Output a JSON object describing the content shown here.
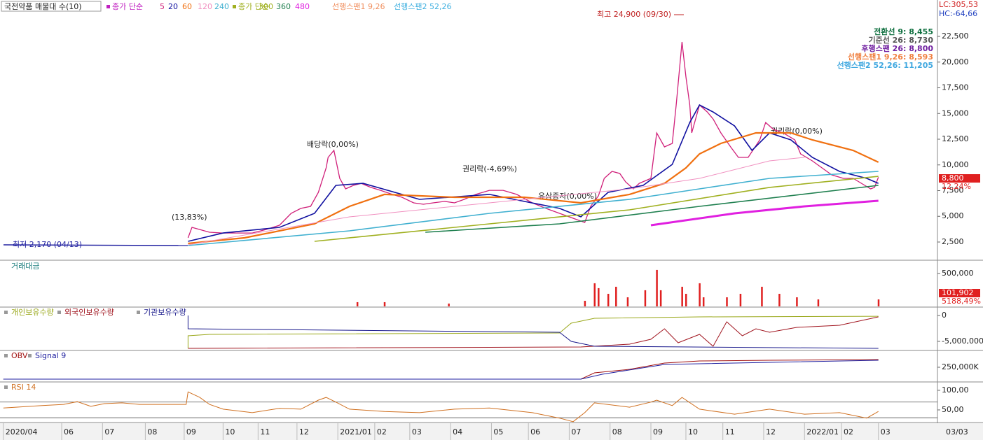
{
  "chart_data": [
    {
      "type": "line",
      "title": "국전약품 매물대 수(10)",
      "legend_groups": [
        "종가 단순",
        "종가 단순"
      ],
      "ichimoku_legend": [
        {
          "name": "선행스팬1 9,26",
          "color": "#f09060"
        },
        {
          "name": "선행스팬2 52,26",
          "color": "#40b0e0"
        }
      ],
      "ichimoku_values": [
        {
          "text": "전환선 9: 8,455",
          "color": "#107040"
        },
        {
          "text": "기준선 26: 8,730",
          "color": "#555555"
        },
        {
          "text": "후행스팬 26: 8,800",
          "color": "#7020a0"
        },
        {
          "text": "선행스팬1 9,26: 8,593",
          "color": "#f08040"
        },
        {
          "text": "선행스팬2 52,26: 11,205",
          "color": "#40a8e0"
        }
      ],
      "lc": "LC:305,53",
      "hc": "HC:-64,66",
      "price_label": "8,800",
      "change_label": "12,24%",
      "annotations": [
        "최고 24,900 (09/30)",
        "최저 2,170 (04/13)",
        "(13,83%)",
        "배당락(0,00%)",
        "권리락(-4,69%)",
        "유상증자(0,00%)",
        "권리락(0,00%)"
      ],
      "cursor_date": "03/03",
      "xlim": [
        0,
        481
      ],
      "xticks": [
        {
          "value": 1,
          "label": "2020/04"
        },
        {
          "value": 31,
          "label": "06"
        },
        {
          "value": 52,
          "label": "07"
        },
        {
          "value": 74,
          "label": "08"
        },
        {
          "value": 94,
          "label": "09"
        },
        {
          "value": 114,
          "label": "10"
        },
        {
          "value": 132,
          "label": "11"
        },
        {
          "value": 152,
          "label": "12"
        },
        {
          "value": 173,
          "label": "2021/01"
        },
        {
          "value": 192,
          "label": "02"
        },
        {
          "value": 210,
          "label": "03"
        },
        {
          "value": 231,
          "label": "04"
        },
        {
          "value": 252,
          "label": "05"
        },
        {
          "value": 271,
          "label": "06"
        },
        {
          "value": 292,
          "label": "07"
        },
        {
          "value": 313,
          "label": "08"
        },
        {
          "value": 334,
          "label": "09"
        },
        {
          "value": 352,
          "label": "10"
        },
        {
          "value": 371,
          "label": "11"
        },
        {
          "value": 392,
          "label": "12"
        },
        {
          "value": 413,
          "label": "2022/01"
        },
        {
          "value": 432,
          "label": "02"
        },
        {
          "value": 451,
          "label": "03"
        }
      ],
      "ylim": [
        730,
        26040
      ],
      "yticks": [
        {
          "value": 2500,
          "label": "2,500"
        },
        {
          "value": 5000,
          "label": "5,000"
        },
        {
          "value": 7500,
          "label": "7,500"
        },
        {
          "value": 10000,
          "label": "10,000"
        },
        {
          "value": 12500,
          "label": "12,500"
        },
        {
          "value": 15000,
          "label": "15,000"
        },
        {
          "value": 17500,
          "label": "17,500"
        },
        {
          "value": 20000,
          "label": "20,000"
        },
        {
          "value": 22500,
          "label": "22,500"
        }
      ],
      "series": [
        {
          "name": "5",
          "color": "#d0207a",
          "width": 1.3,
          "x": [
            96,
            98,
            102,
            107,
            114,
            122,
            129,
            136,
            143,
            149,
            154,
            159,
            163,
            167,
            168,
            171,
            174,
            177,
            181,
            185,
            190,
            195,
            201,
            206,
            212,
            217,
            222,
            228,
            233,
            238,
            244,
            251,
            258,
            265,
            273,
            280,
            287,
            294,
            300,
            303,
            307,
            310,
            314,
            318,
            321,
            325,
            328,
            334,
            337,
            341,
            345,
            347,
            350,
            352,
            354,
            355,
            359,
            363,
            366,
            370,
            375,
            379,
            384,
            390,
            393,
            397,
            402,
            408,
            411,
            417,
            422,
            427,
            433,
            438,
            444,
            447,
            449,
            451
          ],
          "values": [
            2910,
            3930,
            3720,
            3450,
            3380,
            3380,
            3380,
            3720,
            4130,
            5290,
            5770,
            5970,
            7330,
            9710,
            10730,
            11410,
            8690,
            7670,
            8010,
            8210,
            7810,
            7530,
            7130,
            6850,
            6310,
            6170,
            6310,
            6450,
            6310,
            6650,
            7130,
            7530,
            7530,
            7130,
            6310,
            5770,
            5290,
            4810,
            4400,
            5970,
            6990,
            8690,
            9370,
            9170,
            8350,
            7670,
            8210,
            8690,
            13110,
            11750,
            12090,
            15830,
            21960,
            18560,
            15830,
            13110,
            15830,
            15150,
            14470,
            13110,
            11750,
            10730,
            10730,
            12430,
            14130,
            13450,
            13110,
            12430,
            11070,
            10390,
            9710,
            9030,
            8690,
            8690,
            8010,
            7670,
            7810,
            8800
          ]
        },
        {
          "name": "20",
          "color": "#1010a0",
          "width": 1.6,
          "x": [
            96,
            114,
            143,
            161,
            172,
            186,
            215,
            251,
            287,
            298,
            312,
            330,
            345,
            354,
            359,
            366,
            377,
            386,
            395,
            406,
            417,
            431,
            445,
            451
          ],
          "values": [
            2570,
            3380,
            3930,
            5290,
            8010,
            8210,
            6650,
            7130,
            5770,
            4950,
            7330,
            8010,
            10050,
            14130,
            15830,
            15150,
            13790,
            11410,
            13110,
            12430,
            10730,
            9370,
            8690,
            8210
          ]
        },
        {
          "name": "60",
          "color": "#f07010",
          "width": 2.2,
          "x": [
            96,
            125,
            161,
            179,
            197,
            233,
            269,
            298,
            323,
            341,
            352,
            359,
            370,
            388,
            406,
            417,
            438,
            451
          ],
          "values": [
            2360,
            2910,
            4270,
            5970,
            7130,
            6850,
            6850,
            6310,
            7130,
            8210,
            9710,
            11070,
            12090,
            13110,
            13110,
            12430,
            11410,
            10260
          ]
        },
        {
          "name": "120",
          "color": "#f090c0",
          "width": 1,
          "x": [
            96,
            179,
            251,
            323,
            359,
            395,
            413
          ],
          "values": [
            2230,
            4950,
            6310,
            7670,
            8690,
            10390,
            10730
          ]
        },
        {
          "name": "240",
          "color": "#40b0d0",
          "width": 1.6,
          "x": [
            96,
            179,
            251,
            323,
            359,
            395,
            451
          ],
          "values": [
            2160,
            3590,
            5290,
            6650,
            7670,
            8690,
            9370
          ]
        },
        {
          "name": "300",
          "color": "#a0b020",
          "width": 1.6,
          "x": [
            161,
            251,
            323,
            395,
            451
          ],
          "values": [
            2570,
            4270,
            5630,
            7810,
            8890
          ]
        },
        {
          "name": "360",
          "color": "#208050",
          "width": 1.6,
          "x": [
            218,
            287,
            359,
            451
          ],
          "values": [
            3450,
            4270,
            5970,
            8010
          ]
        },
        {
          "name": "480",
          "color": "#e020e0",
          "width": 3,
          "x": [
            334,
            377,
            413,
            451
          ],
          "values": [
            4130,
            5290,
            5970,
            6510
          ]
        }
      ]
    },
    {
      "type": "bar",
      "title": "거래대금",
      "color": "#e02020",
      "current_label": "101,902",
      "current_change": "5188,49%",
      "ylim": [
        0,
        690000
      ],
      "yticks": [
        {
          "value": 500000,
          "label": "500,000"
        }
      ],
      "x": [
        183,
        197,
        230,
        300,
        305,
        307,
        312,
        316,
        322,
        331,
        337,
        339,
        350,
        352,
        359,
        361,
        373,
        380,
        391,
        400,
        409,
        420,
        451
      ],
      "values": [
        64000,
        64000,
        43000,
        85000,
        351000,
        277000,
        191000,
        298000,
        138000,
        245000,
        553000,
        245000,
        298000,
        191000,
        351000,
        138000,
        138000,
        191000,
        298000,
        191000,
        138000,
        106000,
        106000
      ]
    },
    {
      "type": "line",
      "ylim": [
        -6620000,
        1490000
      ],
      "yticks": [
        0,
        {
          "value": -5000000,
          "label": "-5,000,000"
        }
      ],
      "series": [
        {
          "name": "개인보유수량",
          "color": "#9aa81a",
          "x": [
            96,
            96,
            107,
            287,
            293,
            305,
            359,
            451
          ],
          "values": [
            -6350000,
            -3920000,
            -3650000,
            -3380000,
            -1490000,
            -540000,
            -270000,
            -140000
          ]
        },
        {
          "name": "외국인보유수량",
          "color": "#a0141e",
          "x": [
            96,
            298,
            323,
            334,
            341,
            348,
            359,
            366,
            373,
            381,
            388,
            395,
            409,
            431,
            451
          ],
          "values": [
            -6350000,
            -6080000,
            -5540000,
            -4590000,
            -2570000,
            -5270000,
            -3650000,
            -5950000,
            -1220000,
            -3920000,
            -2570000,
            -3240000,
            -2300000,
            -1890000,
            -270000
          ]
        },
        {
          "name": "기관보유수량",
          "color": "#1a1a8c",
          "x": [
            96,
            96,
            287,
            293,
            305,
            451
          ],
          "values": [
            0,
            -2570000,
            -3240000,
            -5000000,
            -5950000,
            -6350000
          ]
        }
      ]
    },
    {
      "type": "line",
      "ylim": [
        -44000000,
        588000000
      ],
      "yticks": [
        {
          "value": 250000000,
          "label": "250,000K"
        }
      ],
      "series": [
        {
          "name": "OBV",
          "color": "#a01010",
          "x": [
            1,
            298,
            305,
            323,
            341,
            359,
            395,
            451
          ],
          "values": [
            0,
            0,
            132000000,
            206000000,
            338000000,
            382000000,
            397000000,
            412000000
          ]
        },
        {
          "name": "Signal 9",
          "color": "#2020a0",
          "x": [
            1,
            298,
            309,
            341,
            451
          ],
          "values": [
            0,
            0,
            103000000,
            309000000,
            397000000
          ]
        }
      ]
    },
    {
      "type": "line",
      "ylim": [
        19.6,
        119.6
      ],
      "yticks": [
        {
          "value": 100,
          "label": "100,00"
        },
        {
          "value": 50,
          "label": "50,00"
        }
      ],
      "levels": [
        70,
        30
      ],
      "series": [
        {
          "name": "RSI 14",
          "color": "#d07020",
          "x": [
            1,
            21,
            32,
            39,
            46,
            53,
            62,
            71,
            95,
            96,
            102,
            107,
            114,
            129,
            143,
            154,
            163,
            167,
            172,
            179,
            197,
            215,
            233,
            251,
            273,
            287,
            294,
            300,
            305,
            323,
            334,
            337,
            345,
            350,
            359,
            377,
            395,
            413,
            431,
            445,
            451
          ],
          "values": [
            55,
            61,
            64,
            71,
            59,
            66,
            68,
            64,
            64,
            96,
            82,
            64,
            52,
            43,
            54,
            52,
            75,
            82,
            70,
            52,
            46,
            43,
            52,
            55,
            43,
            29,
            20,
            43,
            68,
            57,
            70,
            75,
            61,
            82,
            52,
            39,
            52,
            39,
            43,
            29,
            46
          ]
        }
      ]
    }
  ]
}
